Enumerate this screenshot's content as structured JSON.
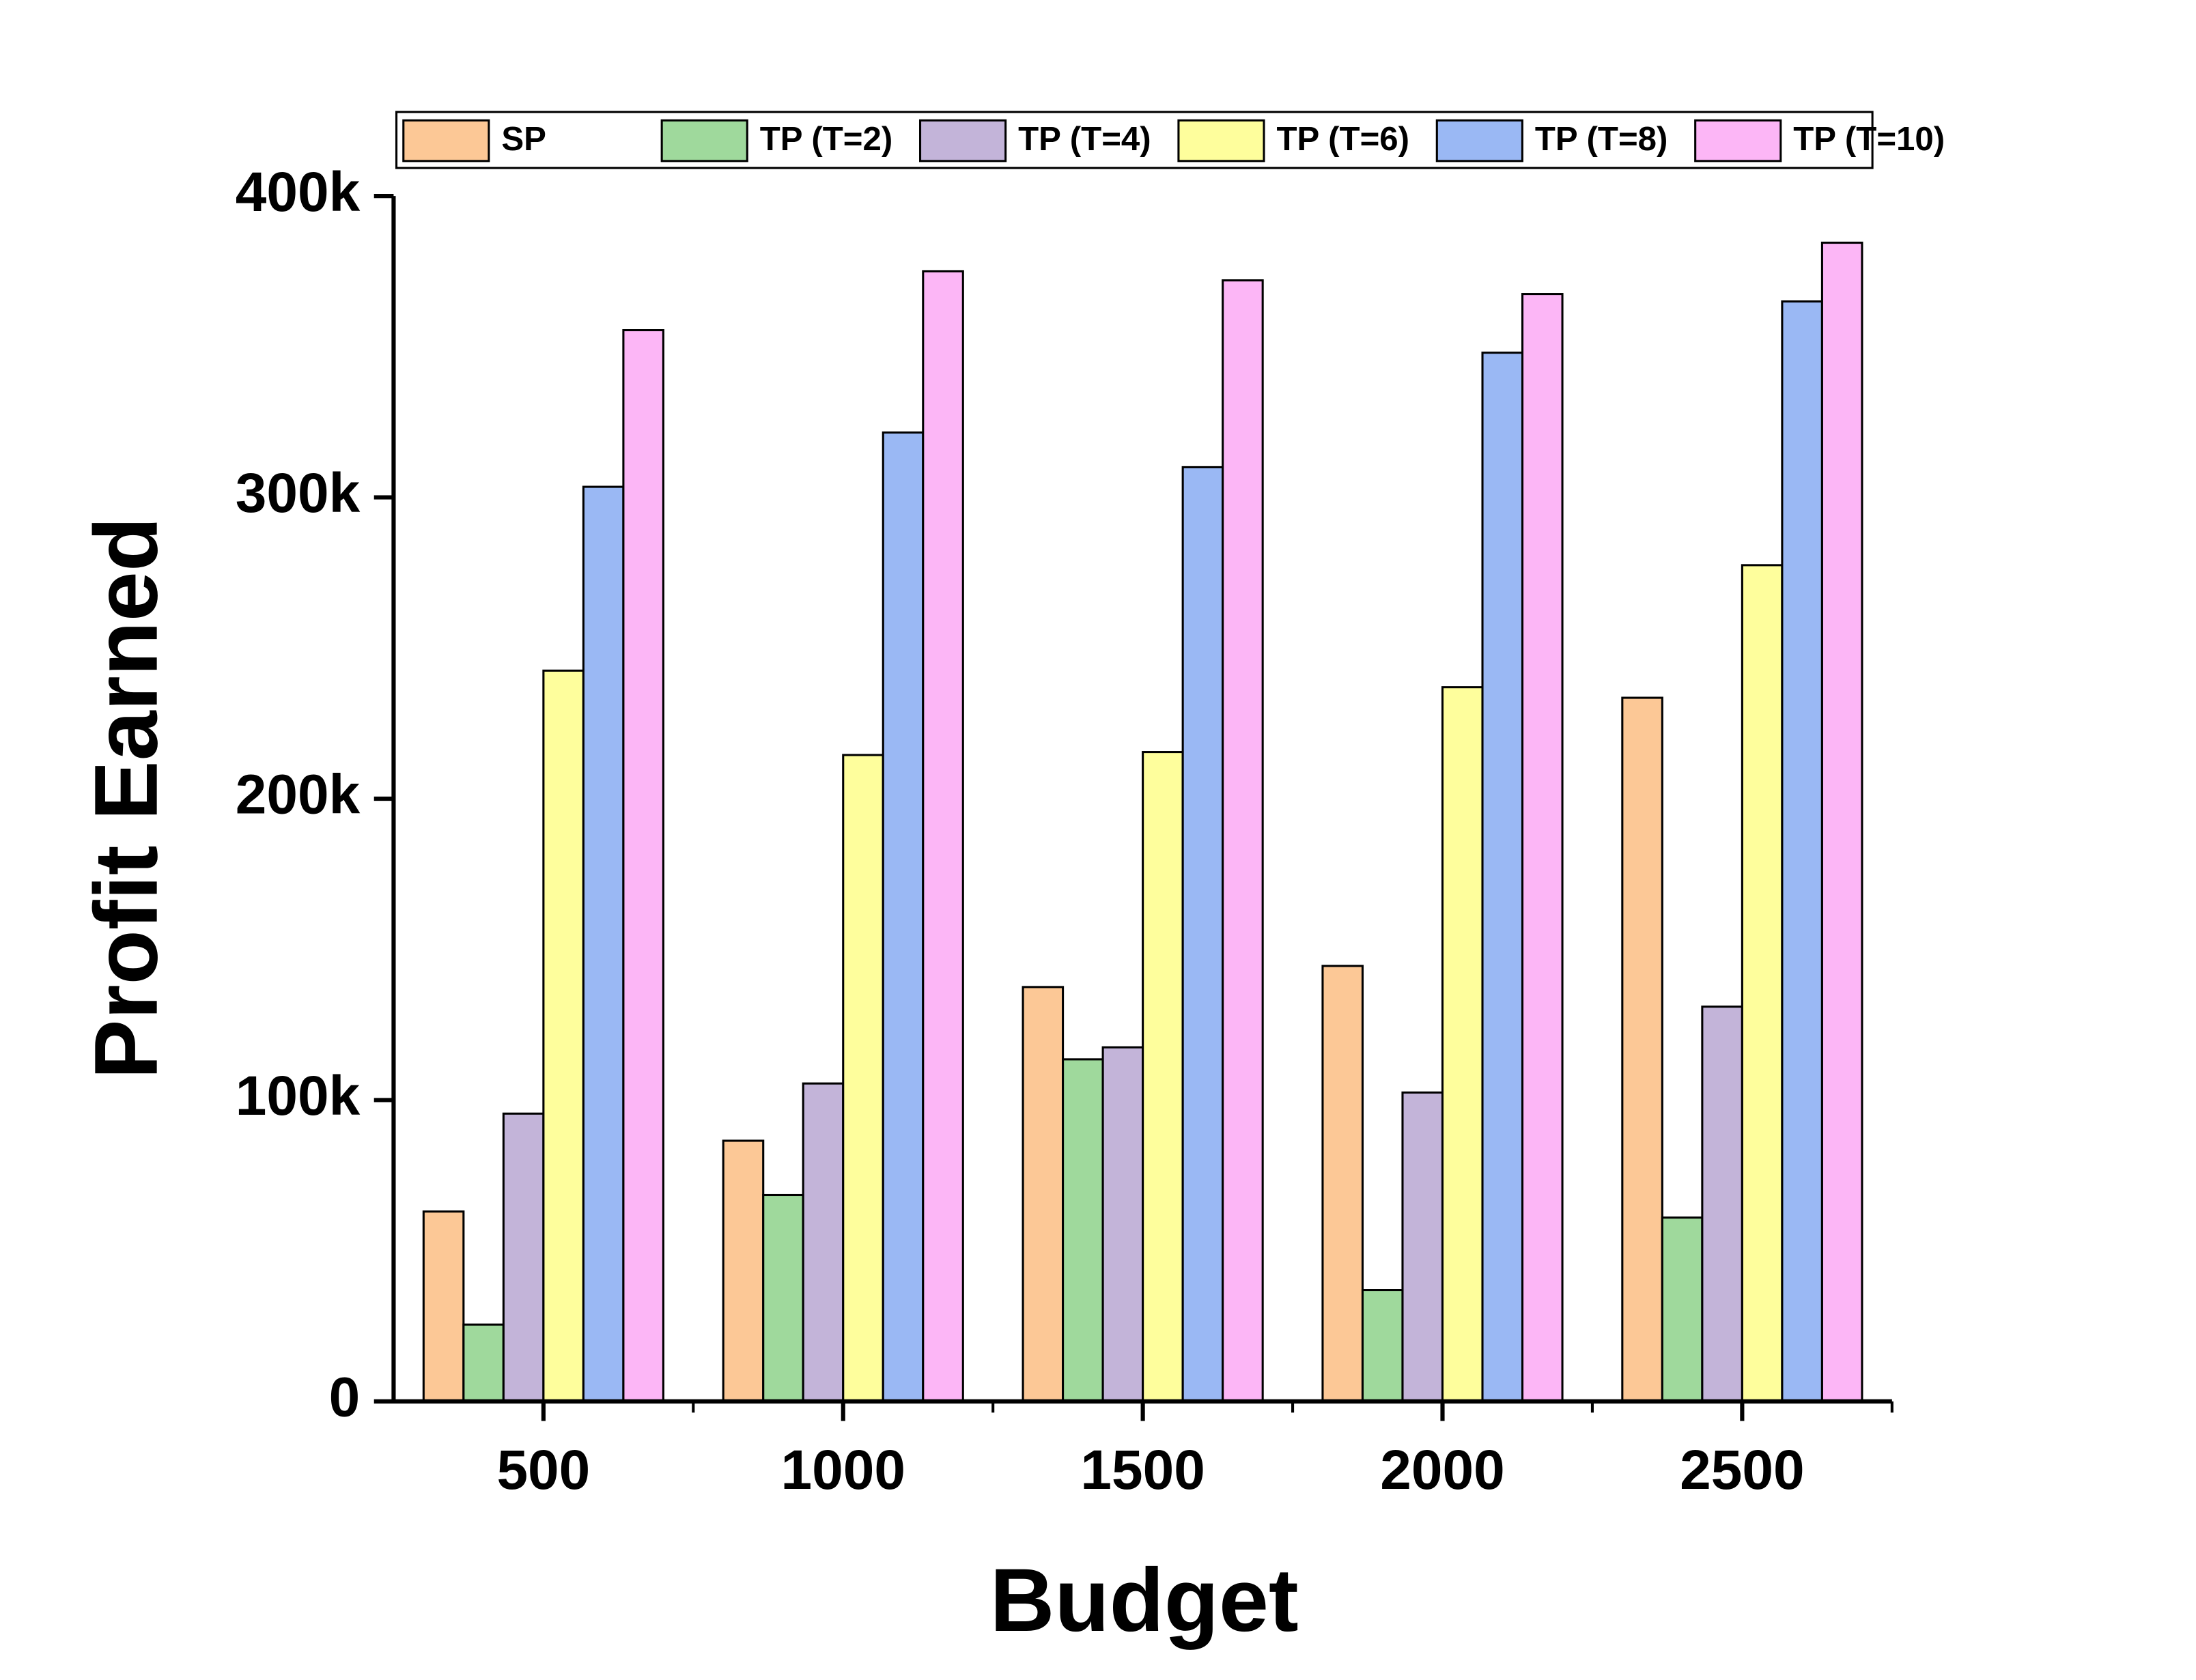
{
  "chart_data": {
    "type": "bar",
    "x_label": "Budget",
    "y_label": "Profit Earned",
    "categories": [
      "500",
      "1000",
      "1500",
      "2000",
      "2500"
    ],
    "series": [
      {
        "name": "SP",
        "color": "#fcc896",
        "values": [
          63000,
          86500,
          137500,
          144500,
          233500
        ]
      },
      {
        "name": "TP (T=2)",
        "color": "#9fd99c",
        "values": [
          25500,
          68500,
          113500,
          37000,
          61000
        ]
      },
      {
        "name": "TP (T=4)",
        "color": "#c3b4d9",
        "values": [
          95500,
          105500,
          117500,
          102500,
          131000
        ]
      },
      {
        "name": "TP (T=6)",
        "color": "#fefe9c",
        "values": [
          242500,
          214500,
          215500,
          237000,
          277500
        ]
      },
      {
        "name": "TP (T=8)",
        "color": "#9ab8f4",
        "values": [
          303500,
          321500,
          310000,
          348000,
          365000
        ]
      },
      {
        "name": "TP (T=10)",
        "color": "#fcb6f6",
        "values": [
          355500,
          375000,
          372000,
          367500,
          384500
        ]
      }
    ],
    "ylim": [
      0,
      400000
    ],
    "yticks": [
      {
        "value": 0,
        "label": "0"
      },
      {
        "value": 100000,
        "label": "100k"
      },
      {
        "value": 200000,
        "label": "200k"
      },
      {
        "value": 300000,
        "label": "300k"
      },
      {
        "value": 400000,
        "label": "400k"
      }
    ],
    "legend": "top"
  }
}
